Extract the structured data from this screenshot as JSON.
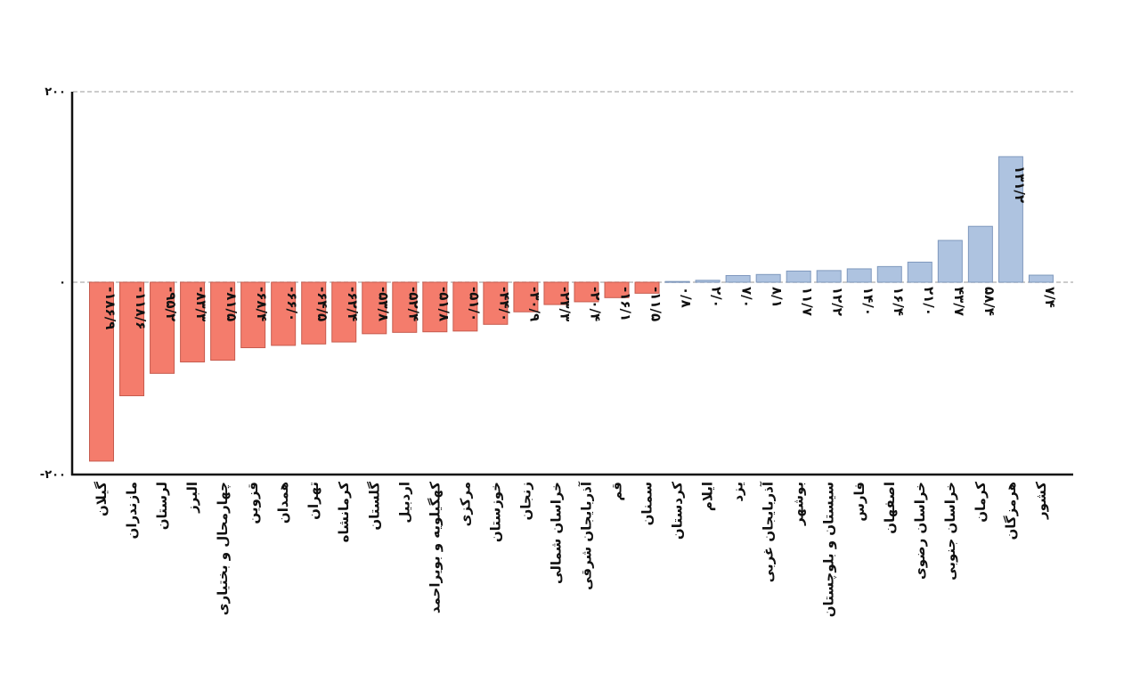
{
  "chart_data": {
    "type": "bar",
    "title": "",
    "xlabel": "",
    "ylabel": "",
    "ylim": [
      -200,
      200
    ],
    "yticks": [
      200,
      0,
      -200
    ],
    "ytick_labels": [
      "۲۰۰",
      "۰",
      "-۲۰۰"
    ],
    "grid": "dashed at 200",
    "colors": {
      "negative": "#f47c6c",
      "positive": "#aec3e0",
      "negative_edge": "#c65b4e",
      "positive_edge": "#7f98bd"
    },
    "categories": [
      "گیلان",
      "مازندران",
      "لرستان",
      "البرز",
      "چهارمحال و بختیاری",
      "قزوین",
      "همدان",
      "تهران",
      "کرمانشاه",
      "گلستان",
      "اردبیل",
      "کهگیلویه و بویراحمد",
      "مرکزی",
      "خوزستان",
      "زنجان",
      "خراسان شمالی",
      "آذربایجان شرقی",
      "قم",
      "سمنان",
      "کردستان",
      "ایلام",
      "یزد",
      "آذربایجان غربی",
      "بوشهر",
      "سیستان و بلوچستان",
      "فارس",
      "اصفهان",
      "خراسان رضوی",
      "خراسان جنوبی",
      "کرمان",
      "هرمزگان",
      "کشور"
    ],
    "values": [
      -186.9,
      -118.6,
      -95.2,
      -83.3,
      -81.5,
      -68.4,
      -66.0,
      -64.5,
      -62.4,
      -53.8,
      -52.4,
      -51.8,
      -51.0,
      -44.0,
      -30.9,
      -23.3,
      -20.4,
      -16.1,
      -11.5,
      0.8,
      2.0,
      7.0,
      8.1,
      11.7,
      12.2,
      14.0,
      16.4,
      21.0,
      43.7,
      58.4,
      131.2,
      7.4
    ],
    "value_labels": [
      "-۱۸۶/۹",
      "-۱۱۸/۶",
      "-۹۵/۲",
      "-۸۳/۳",
      "-۸۱/۵",
      "-۶۸/۴",
      "-۶۶/۰",
      "-۶۴/۵",
      "-۶۲/۴",
      "-۵۳/۸",
      "-۵۲/۴",
      "-۵۱/۸",
      "-۵۱/۰",
      "-۴۴/۰",
      "-۳۰/۹",
      "-۲۳/۳",
      "-۲۰/۴",
      "-۱۶/۱",
      "-۱۱/۵",
      "۰/۸",
      "۲/۰",
      "۷/۰",
      "۸/۱",
      "۱۱/۷",
      "۱۲/۲",
      "۱۴/۰",
      "۱۶/۴",
      "۲۱/۰",
      "۴۳/۷",
      "۵۸/۴",
      "۱۳۱/۲",
      "۷/۴"
    ]
  }
}
